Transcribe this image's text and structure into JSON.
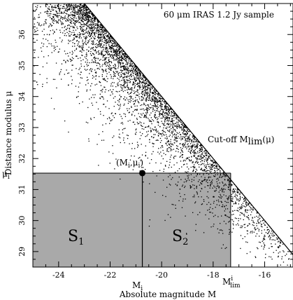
{
  "chart_data": {
    "type": "scatter",
    "title": "60 μm IRAS 1.2 Jy sample",
    "xlabel": "Absolute magnitude M",
    "ylabel": "Distance modulus μ",
    "xlim": [
      -25.0,
      -14.9
    ],
    "ylim": [
      28.5,
      37.0
    ],
    "x_ticks": [
      -24,
      -22,
      -20,
      -18,
      -16
    ],
    "y_ticks": [
      29,
      30,
      31,
      32,
      33,
      34,
      35,
      36
    ],
    "cutoff_line": {
      "label": "Cut-off M",
      "label_sub": "lim",
      "label_arg": "(μ)",
      "points": [
        [
          -23.0,
          37.0
        ],
        [
          -14.9,
          28.9
        ]
      ]
    },
    "selected_point": {
      "x": -20.75,
      "y": 31.53,
      "label": "(M",
      "label_sub": "i",
      "label_mid": ",μ",
      "label_end": ")"
    },
    "mu_i_label": "μ",
    "mu_i_sub": "i",
    "M_i_label": "M",
    "M_i_sub": "i",
    "M_lim_label": "M",
    "M_lim_sup": "i",
    "M_lim_sub": "lim",
    "M_lim_i_value": -17.32,
    "regions": [
      {
        "name": "S",
        "sub": "1",
        "x_range": [
          -25.0,
          -20.75
        ],
        "y_range": [
          28.5,
          31.53
        ]
      },
      {
        "name": "S",
        "sub": "2",
        "x_range": [
          -20.75,
          -17.32
        ],
        "y_range": [
          28.5,
          31.53
        ]
      }
    ],
    "colors": {
      "region_fill": "#a9a9a9",
      "points": "#000000",
      "lines": "#000000"
    }
  }
}
